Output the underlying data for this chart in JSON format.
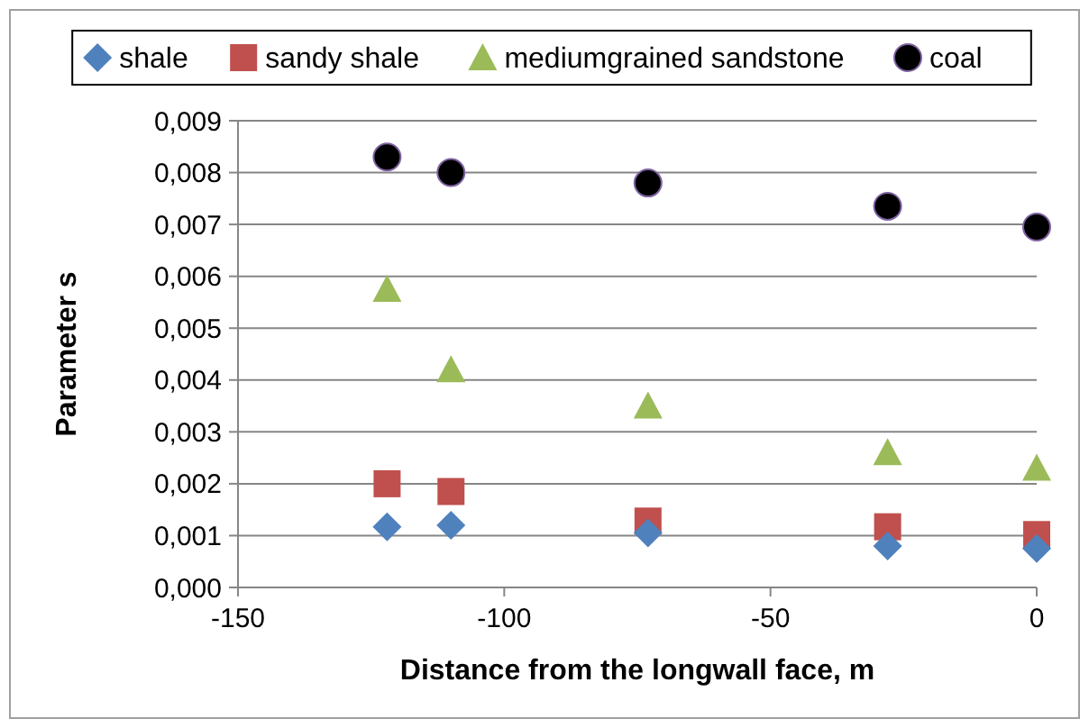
{
  "chart_data": {
    "type": "scatter",
    "xlabel": "Distance from the longwall face, m",
    "ylabel": "Parameter s",
    "x": [
      -122,
      -110,
      -73,
      -28,
      0
    ],
    "series": [
      {
        "name": "shale",
        "color": "#4f81bd",
        "marker": "diamond",
        "values": [
          0.00117,
          0.0012,
          0.00105,
          0.0008,
          0.00075
        ]
      },
      {
        "name": "sandy shale",
        "color": "#c0504d",
        "marker": "square",
        "values": [
          0.002,
          0.00185,
          0.00128,
          0.00117,
          0.00102
        ]
      },
      {
        "name": "mediumgrained sandstone",
        "color": "#9bbb59",
        "marker": "triangle",
        "values": [
          0.00575,
          0.0042,
          0.0035,
          0.0026,
          0.0023
        ]
      },
      {
        "name": "coal",
        "color": "#000000",
        "marker": "circle",
        "values": [
          0.0083,
          0.008,
          0.0078,
          0.00735,
          0.00695
        ]
      }
    ],
    "xlim": [
      -150,
      0
    ],
    "xticks": [
      -150,
      -100,
      -50,
      0
    ],
    "ylim": [
      0,
      0.009
    ],
    "yticks": [
      {
        "value": 0,
        "label": "0,000"
      },
      {
        "value": 0.001,
        "label": "0,001"
      },
      {
        "value": 0.002,
        "label": "0,002"
      },
      {
        "value": 0.003,
        "label": "0,003"
      },
      {
        "value": 0.004,
        "label": "0,004"
      },
      {
        "value": 0.005,
        "label": "0,005"
      },
      {
        "value": 0.006,
        "label": "0,006"
      },
      {
        "value": 0.007,
        "label": "0,007"
      },
      {
        "value": 0.008,
        "label": "0,008"
      },
      {
        "value": 0.009,
        "label": "0,009"
      }
    ],
    "grid": "y",
    "legend": "top"
  }
}
